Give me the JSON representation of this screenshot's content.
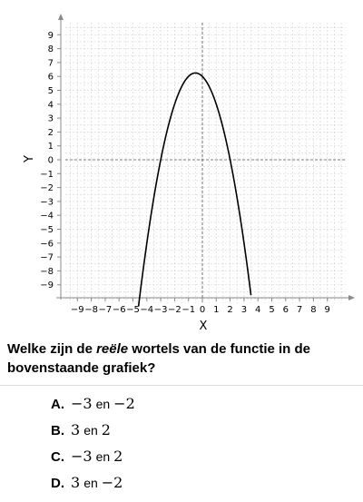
{
  "chart_data": {
    "type": "line",
    "xlabel": "X",
    "ylabel": "Y",
    "xlim": [
      -10,
      10
    ],
    "ylim": [
      -10,
      10
    ],
    "xticks": [
      -9,
      -8,
      -7,
      -6,
      -5,
      -4,
      -3,
      -2,
      -1,
      0,
      1,
      2,
      3,
      4,
      5,
      6,
      7,
      8,
      9
    ],
    "yticks": [
      9,
      8,
      7,
      6,
      5,
      4,
      3,
      2,
      1,
      0,
      -1,
      -2,
      -3,
      -4,
      -5,
      -6,
      -7,
      -8,
      -9
    ],
    "grid": true,
    "series": [
      {
        "color": "#000000",
        "function": "-(x + 3)(x - 2)",
        "x_range": [
          -4.6,
          3.5
        ]
      }
    ]
  },
  "question": {
    "before": "Welke zijn de ",
    "emphasis": "reële",
    "after": " wortels van de functie in de bovenstaande grafiek?"
  },
  "options": [
    {
      "letter": "A.",
      "first": "−3",
      "joiner": "en",
      "second": "−2"
    },
    {
      "letter": "B.",
      "first": "3",
      "joiner": "en",
      "second": "2"
    },
    {
      "letter": "C.",
      "first": "−3",
      "joiner": "en",
      "second": "2"
    },
    {
      "letter": "D.",
      "first": "3",
      "joiner": "en",
      "second": "−2"
    }
  ]
}
